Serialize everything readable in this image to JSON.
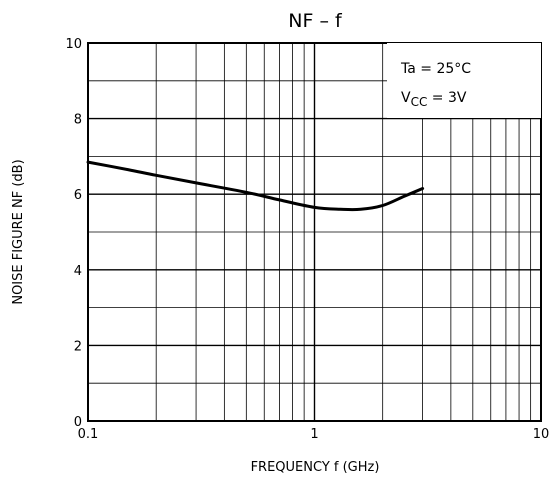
{
  "chart_data": {
    "type": "line",
    "title": "NF  –  f",
    "xlabel": "FREQUENCY   f   (GHz)",
    "ylabel": "NOISE FIGURE   NF    (dB)",
    "x_scale": "log",
    "xlim": [
      0.1,
      10
    ],
    "ylim": [
      0,
      10
    ],
    "x_ticks": [
      "0.1",
      "1",
      "10"
    ],
    "y_ticks": [
      "0",
      "2",
      "4",
      "6",
      "8",
      "10"
    ],
    "grid": true,
    "conditions": {
      "ta": "Ta = 25°C",
      "vcc_main": "V",
      "vcc_sub": "CC",
      "vcc_value": " = 3V"
    },
    "series": [
      {
        "x": [
          0.1,
          0.15,
          0.2,
          0.3,
          0.5,
          0.7,
          1.0,
          1.3,
          1.6,
          2.0,
          2.5,
          3.0
        ],
        "y": [
          6.85,
          6.65,
          6.5,
          6.3,
          6.05,
          5.85,
          5.65,
          5.6,
          5.6,
          5.7,
          5.95,
          6.15
        ]
      }
    ]
  }
}
